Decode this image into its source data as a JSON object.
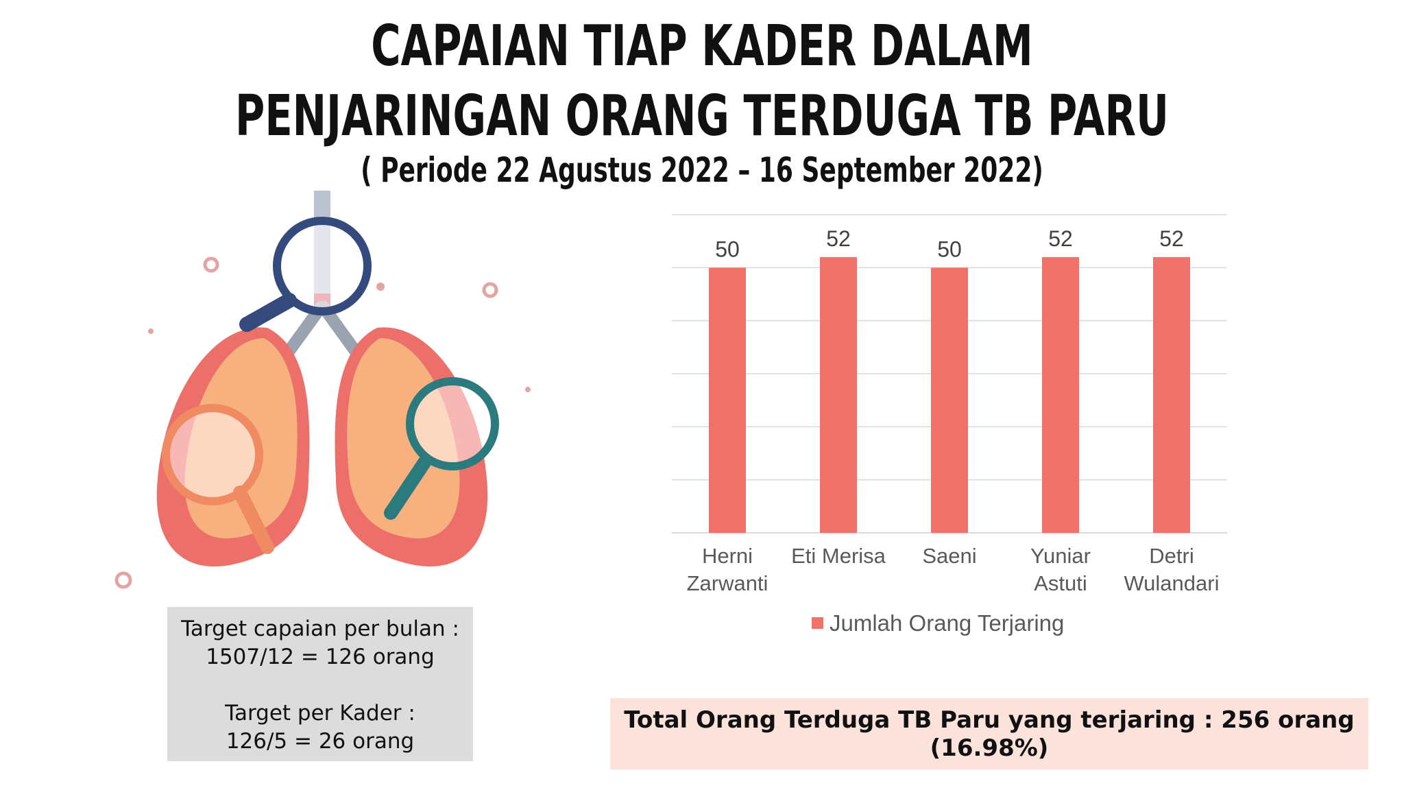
{
  "title_line1": "CAPAIAN TIAP KADER DALAM",
  "title_line2": "PENJARINGAN ORANG TERDUGA TB PARU",
  "period": "( Periode 22 Agustus 2022 – 16 September 2022)",
  "target_box": {
    "line1": "Target capaian per bulan :",
    "line2": "1507/12 = 126 orang",
    "line3": "Target per Kader :",
    "line4": "126/5 = 26 orang"
  },
  "total_box": {
    "line1": "Total Orang Terduga TB Paru yang terjaring : 256 orang",
    "line2": "(16.98%)"
  },
  "colors": {
    "bar": "#f0706a",
    "grid": "#d9d9d9",
    "target_bg": "#dcdcdc",
    "total_bg": "#fbe3dc"
  },
  "illustration": "lungs-with-magnifying-glasses",
  "chart_data": {
    "type": "bar",
    "categories": [
      [
        "Herni",
        "Zarwanti"
      ],
      [
        "Eti Merisa"
      ],
      [
        "Saeni"
      ],
      [
        "Yuniar",
        "Astuti"
      ],
      [
        "Detri",
        "Wulandari"
      ]
    ],
    "series": [
      {
        "name": "Jumlah Orang Terjaring",
        "values": [
          50,
          52,
          50,
          52,
          52
        ]
      }
    ],
    "data_labels": [
      "50",
      "52",
      "50",
      "52",
      "52"
    ],
    "ylim": [
      0,
      60
    ],
    "grid": true,
    "ytick_labels_visible": false,
    "legend": "bottom",
    "title": "",
    "xlabel": "",
    "ylabel": ""
  }
}
